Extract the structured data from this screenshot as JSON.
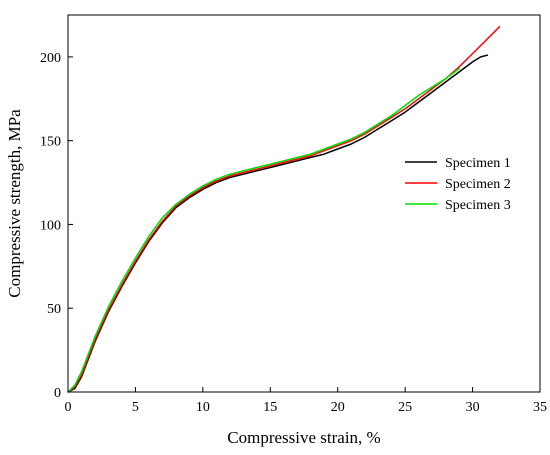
{
  "chart_data": {
    "type": "line",
    "title": "",
    "xlabel": "Compressive strain, %",
    "ylabel": "Compressive strength, MPa",
    "xlim": [
      0,
      35
    ],
    "ylim": [
      0,
      225
    ],
    "xticks": [
      0,
      5,
      10,
      15,
      20,
      25,
      30,
      35
    ],
    "yticks": [
      0,
      50,
      100,
      150,
      200
    ],
    "grid": false,
    "legend_position": "center-right",
    "series": [
      {
        "name": "Specimen 1",
        "color": "#000000",
        "x": [
          0,
          0.5,
          1,
          2,
          3,
          4,
          5,
          6,
          7,
          8,
          9,
          10,
          11,
          12,
          13,
          14,
          15,
          16,
          17,
          18,
          19,
          20,
          21,
          22,
          23,
          24,
          25,
          26,
          27,
          28,
          29,
          30,
          30.6,
          31.1
        ],
        "y": [
          0,
          2,
          9,
          30,
          48,
          63,
          77,
          90,
          101,
          110,
          116,
          121,
          125,
          128,
          130,
          132,
          134,
          136,
          138,
          140,
          142,
          145,
          148,
          152,
          157,
          162,
          167,
          173,
          179,
          185,
          191,
          197,
          200,
          201
        ]
      },
      {
        "name": "Specimen 2",
        "color": "#ff0000",
        "x": [
          0,
          0.5,
          1,
          2,
          3,
          4,
          5,
          6,
          7,
          8,
          9,
          10,
          11,
          12,
          13,
          14,
          15,
          16,
          17,
          18,
          19,
          20,
          21,
          22,
          23,
          24,
          25,
          26,
          27,
          28,
          29,
          30,
          31,
          32
        ],
        "y": [
          0,
          3,
          10,
          31,
          49,
          64,
          78,
          91,
          102,
          111,
          117,
          122,
          126,
          129,
          131,
          133,
          135,
          137,
          139,
          141,
          144,
          147,
          150,
          154,
          159,
          164,
          169,
          175,
          181,
          187,
          194,
          202,
          210,
          218
        ]
      },
      {
        "name": "Specimen 3",
        "color": "#00e000",
        "x": [
          0,
          0.5,
          1,
          2,
          3,
          4,
          5,
          6,
          7,
          8,
          9,
          10,
          11,
          12,
          13,
          14,
          15,
          16,
          17,
          18,
          19,
          20,
          21,
          22,
          23,
          24,
          25,
          26,
          27,
          28,
          29
        ],
        "y": [
          0,
          4,
          12,
          33,
          51,
          66,
          80,
          93,
          104,
          112,
          118,
          123,
          127,
          130,
          132,
          134,
          136,
          138,
          140,
          142,
          145,
          148,
          151,
          155,
          160,
          165,
          171,
          177,
          182,
          187,
          193
        ]
      }
    ]
  }
}
